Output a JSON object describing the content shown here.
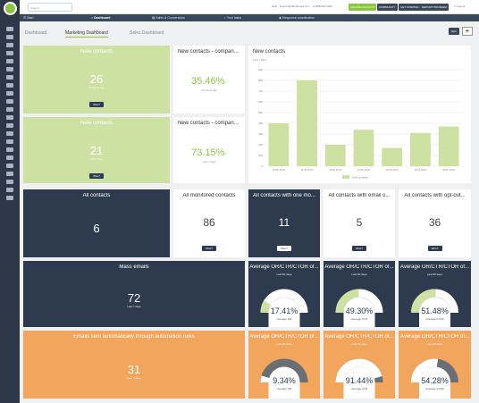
{
  "topbar": {
    "search_placeholder": "Search",
    "contact_text": "Help · support@dashboard.com · +1 888 000 0000",
    "btn_upgrade": "CREATE ACCOUNT",
    "btn_community": "COMMUNITY",
    "btn_started": "GET STARTED",
    "btn_report": "REPORT PROBLEM",
    "logout": "Logout",
    "colors": {
      "green": "#8cc63f",
      "navy": "#38475a",
      "orange": "#f1a55d"
    }
  },
  "nav": {
    "start": "Start",
    "items": [
      "Dashboard",
      "Sales & Conversions",
      "Your tasks",
      "Response coordination"
    ]
  },
  "tabs": [
    "Dashboard",
    "Marketing Dashboard",
    "Sales Dashboard"
  ],
  "toolbar": {
    "edit": "Edit",
    "add": "+"
  },
  "cards": {
    "nc1": {
      "title": "New contacts",
      "value": "26",
      "sub": "Previous day",
      "btn": "Who?"
    },
    "ncc1": {
      "title": "New contacts - comparis...",
      "value": "35.46%",
      "arrow": "↑",
      "sub": "Previous day"
    },
    "nc2": {
      "title": "New contacts",
      "value": "21",
      "sub": "Last 7 days",
      "btn": "Who?"
    },
    "ncc2": {
      "title": "New contacts - comparis...",
      "value": "73.15%",
      "arrow": "↑",
      "sub": "Last 7 days"
    },
    "all": {
      "title": "All contacts",
      "value": "6"
    },
    "monitored": {
      "title": "All monitored contacts",
      "value": "86",
      "btn": "Who?"
    },
    "onemore": {
      "title": "All contacts with one mo...",
      "value": "11",
      "btn": "Who?"
    },
    "email": {
      "title": "All contacts with email o...",
      "value": "5",
      "btn": "Who?"
    },
    "optout": {
      "title": "All contacts with opt-out...",
      "value": "36",
      "btn": "Who?"
    },
    "mass": {
      "title": "Mass emails",
      "value": "72",
      "sub": "Last 7 days"
    },
    "auto": {
      "title": "Emails sent automatically through automation rules",
      "value": "31",
      "sub": "Last 7 days"
    }
  },
  "gauges": [
    {
      "title": "Average OR/CTR/CTOR of...",
      "sub": "Last 90 days",
      "value": "17.41%",
      "label": "Average OR",
      "fraction": 0.1741,
      "dark": true
    },
    {
      "title": "Average OR/CTR/CTOR of...",
      "sub": "Last 90 days",
      "value": "49.30%",
      "label": "Average CTR",
      "fraction": 0.493,
      "dark": true
    },
    {
      "title": "Average OR/CTR/CTOR of...",
      "sub": "Last 90 days",
      "value": "51.48%",
      "label": "Average CTOR",
      "fraction": 0.5148,
      "dark": true
    },
    {
      "title": "Average OR/CTR/CTOR of...",
      "sub": "Last 30 days",
      "value": "9.34%",
      "label": "Average OR",
      "fraction": 0.0934,
      "dark": false
    },
    {
      "title": "Average OR/CTR/CTOR of...",
      "sub": "Last 30 days",
      "value": "91.44%",
      "label": "Average CTR",
      "fraction": 0.9144,
      "dark": false
    },
    {
      "title": "Average OR/CTR/CTOR of...",
      "sub": "Last 30 days",
      "value": "54.28%",
      "label": "Average CTOR",
      "fraction": 0.5428,
      "dark": false
    }
  ],
  "chart_data": {
    "type": "bar",
    "title": "New contacts",
    "subtitle": "Last 7 days",
    "categories": [
      "10.09. 00:00",
      "11.09. 00:00",
      "12.09. 00:00",
      "13.09. 00:00",
      "14.09. 00:00",
      "15.09. 00:00",
      "16.09. 00:00"
    ],
    "series": [
      {
        "name": "New contacts",
        "values": [
          400,
          800,
          200,
          340,
          170,
          310,
          370
        ]
      }
    ],
    "yticks": [
      "0",
      "100",
      "200",
      "300",
      "400",
      "500",
      "600",
      "700",
      "800",
      "900"
    ],
    "ylim": [
      0,
      900
    ],
    "color": "#cde1a3",
    "grid": true,
    "legend": "bottom"
  }
}
